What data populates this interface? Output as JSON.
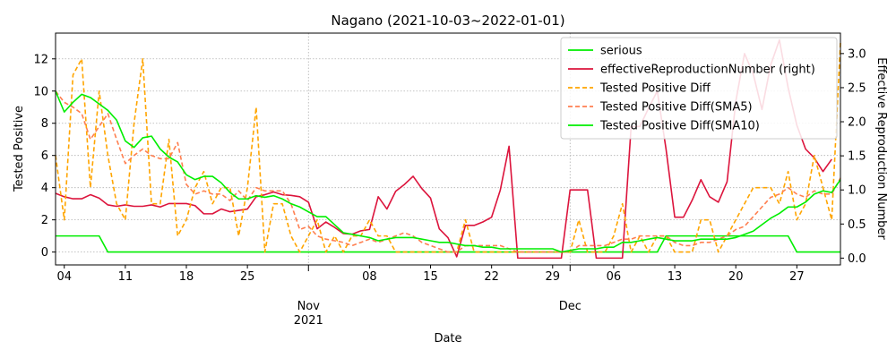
{
  "chart_data": {
    "type": "line",
    "title": "Nagano (2021-10-03~2022-01-01)",
    "xlabel": "Date",
    "ylabel_left": "Tested Positive",
    "ylabel_right": "Effective Reproduction Number",
    "x_start": "2021-10-03",
    "x_end": "2022-01-01",
    "ylim_left": [
      -0.8,
      13.6
    ],
    "ylim_right": [
      -0.1,
      3.3
    ],
    "yticks_left": [
      "0",
      "2",
      "4",
      "6",
      "8",
      "10",
      "12"
    ],
    "yticks_right": [
      "0.0",
      "0.5",
      "1.0",
      "1.5",
      "2.0",
      "2.5",
      "3.0"
    ],
    "x_ticks": [
      {
        "date": "2021-10-04",
        "label": "04"
      },
      {
        "date": "2021-10-11",
        "label": "11"
      },
      {
        "date": "2021-10-18",
        "label": "18"
      },
      {
        "date": "2021-10-25",
        "label": "25"
      },
      {
        "date": "2021-11-01",
        "label": "Nov"
      },
      {
        "date": "2021-11-08",
        "label": "08"
      },
      {
        "date": "2021-11-15",
        "label": "15"
      },
      {
        "date": "2021-11-22",
        "label": "22"
      },
      {
        "date": "2021-11-29",
        "label": "29"
      },
      {
        "date": "2021-12-01",
        "label": "Dec"
      },
      {
        "date": "2021-12-06",
        "label": "06"
      },
      {
        "date": "2021-12-13",
        "label": "13"
      },
      {
        "date": "2021-12-20",
        "label": "20"
      },
      {
        "date": "2021-12-27",
        "label": "27"
      }
    ],
    "year_label": "2021",
    "grid": true,
    "legend_position": "top-right",
    "series": [
      {
        "name": "serious",
        "axis": "left",
        "color": "#00ee00",
        "style": "solid",
        "values": [
          1,
          1,
          1,
          1,
          1,
          1,
          0,
          0,
          0,
          0,
          0,
          0,
          0,
          0,
          0,
          0,
          0,
          0,
          0,
          0,
          0,
          0,
          0,
          0,
          0,
          0,
          0,
          0,
          0,
          0,
          0,
          0,
          0,
          0,
          0,
          0,
          0,
          0,
          0,
          0,
          0,
          0,
          0,
          0,
          0,
          0,
          0,
          0,
          0,
          0,
          0,
          0,
          0,
          0,
          0,
          0,
          0,
          0,
          0,
          0,
          0,
          0,
          0,
          0,
          0,
          0,
          0,
          0,
          0,
          0,
          1,
          1,
          1,
          1,
          1,
          1,
          1,
          1,
          1,
          1,
          1,
          1,
          1,
          1,
          1,
          0,
          0,
          0,
          0,
          0,
          0
        ]
      },
      {
        "name": "effectiveReproductionNumber (right)",
        "axis": "right",
        "color": "#dc143c",
        "style": "solid",
        "values": [
          0.95,
          0.9,
          0.87,
          0.87,
          0.93,
          0.88,
          0.78,
          0.76,
          0.78,
          0.76,
          0.76,
          0.78,
          0.75,
          0.8,
          0.8,
          0.8,
          0.77,
          0.65,
          0.65,
          0.72,
          0.68,
          0.7,
          0.72,
          0.9,
          0.93,
          0.97,
          0.93,
          0.92,
          0.9,
          0.82,
          0.43,
          0.53,
          0.45,
          0.36,
          0.35,
          0.4,
          0.42,
          0.9,
          0.72,
          0.98,
          1.08,
          1.2,
          1.02,
          0.88,
          0.43,
          0.3,
          0.02,
          0.48,
          0.48,
          0.53,
          0.6,
          1.0,
          1.64,
          0.0,
          0.0,
          0.0,
          0.0,
          0.0,
          0.0,
          1.0,
          1.0,
          1.0,
          0.0,
          0.0,
          0.0,
          0.0,
          1.93,
          1.93,
          2.2,
          2.45,
          1.6,
          0.6,
          0.6,
          0.85,
          1.15,
          0.9,
          0.82,
          1.12,
          2.3,
          3.0,
          2.7,
          2.18,
          2.83,
          3.2,
          2.5,
          1.95,
          1.6,
          1.47,
          1.27,
          1.45
        ]
      },
      {
        "name": "Tested Positive Diff",
        "axis": "left",
        "color": "#ffa500",
        "style": "dashed",
        "values": [
          6,
          2,
          11,
          12,
          4,
          10,
          6,
          3,
          2,
          8,
          12,
          3,
          3,
          7,
          1,
          2,
          4,
          5,
          3,
          4,
          4,
          1,
          4,
          9,
          0,
          3,
          3,
          1,
          0,
          1,
          2,
          0,
          1,
          0,
          1,
          1,
          2,
          1,
          1,
          0,
          0,
          0,
          0,
          0,
          0,
          0,
          0,
          2,
          0,
          0,
          0,
          0,
          0,
          0,
          0,
          0,
          0,
          0,
          0,
          0,
          2,
          0,
          0,
          0,
          1,
          3,
          0,
          1,
          0,
          1,
          1,
          0,
          0,
          0,
          2,
          2,
          0,
          1,
          2,
          3,
          4,
          4,
          4,
          3,
          5,
          2,
          3,
          6,
          4,
          2,
          13
        ]
      },
      {
        "name": "Tested Positive Diff(SMA5)",
        "axis": "left",
        "color": "#ff7f50",
        "style": "dashed",
        "values": [
          10,
          9.3,
          9,
          8.6,
          7,
          7.8,
          8.6,
          7,
          5.5,
          6,
          6.4,
          6,
          5.8,
          5.8,
          6.8,
          4.2,
          3.6,
          3.8,
          3.6,
          3.6,
          3.2,
          3.8,
          3.2,
          4.0,
          3.8,
          3.8,
          3.8,
          3.0,
          1.4,
          1.6,
          1.0,
          0.8,
          0.7,
          0.6,
          0.4,
          0.6,
          0.8,
          0.6,
          0.8,
          1.0,
          1.2,
          1.0,
          0.6,
          0.4,
          0.2,
          0.0,
          0.0,
          0.4,
          0.4,
          0.4,
          0.4,
          0.4,
          0.2,
          0.0,
          0.0,
          0.0,
          0.0,
          0.0,
          0.0,
          0.0,
          0.4,
          0.4,
          0.4,
          0.4,
          0.6,
          0.8,
          0.8,
          1.0,
          1.0,
          1.0,
          1.0,
          0.6,
          0.4,
          0.4,
          0.6,
          0.6,
          0.8,
          1.0,
          1.4,
          1.6,
          2.2,
          2.8,
          3.4,
          3.6,
          4.0,
          3.6,
          3.4,
          3.8,
          3.6,
          3.6,
          4.6
        ]
      },
      {
        "name": "Tested Positive Diff(SMA10)",
        "axis": "left",
        "color": "#00ee00",
        "style": "solid",
        "values": [
          10,
          8.7,
          9.3,
          9.8,
          9.6,
          9.2,
          8.8,
          8.2,
          6.9,
          6.5,
          7.1,
          7.2,
          6.4,
          5.9,
          5.6,
          4.8,
          4.5,
          4.7,
          4.7,
          4.3,
          3.7,
          3.3,
          3.3,
          3.5,
          3.4,
          3.5,
          3.3,
          3.0,
          2.8,
          2.5,
          2.2,
          2.2,
          1.7,
          1.2,
          1.1,
          1.0,
          0.9,
          0.7,
          0.8,
          0.9,
          0.9,
          0.9,
          0.8,
          0.7,
          0.6,
          0.6,
          0.5,
          0.4,
          0.4,
          0.3,
          0.3,
          0.2,
          0.2,
          0.2,
          0.2,
          0.2,
          0.2,
          0.2,
          0.0,
          0.1,
          0.2,
          0.2,
          0.2,
          0.3,
          0.3,
          0.6,
          0.6,
          0.7,
          0.8,
          0.9,
          0.8,
          0.7,
          0.7,
          0.7,
          0.8,
          0.8,
          0.8,
          0.8,
          0.9,
          1.1,
          1.3,
          1.7,
          2.1,
          2.4,
          2.8,
          2.8,
          3.1,
          3.6,
          3.8,
          3.7,
          4.5
        ]
      }
    ]
  }
}
